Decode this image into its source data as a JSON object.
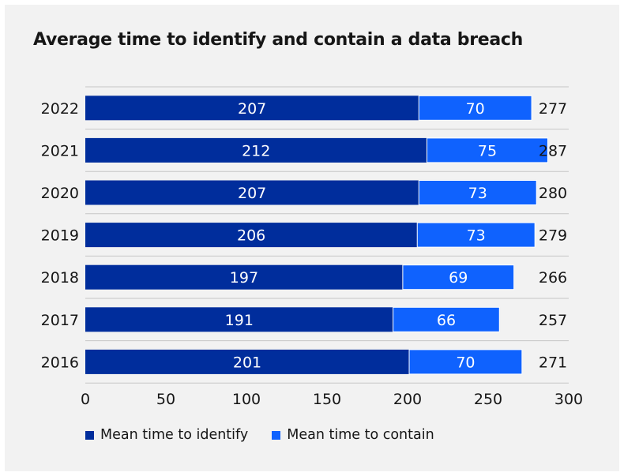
{
  "chart_data": {
    "type": "bar",
    "orientation": "horizontal",
    "stacked": true,
    "title": "Average time to identify and contain a data breach",
    "categories": [
      "2022",
      "2021",
      "2020",
      "2019",
      "2018",
      "2017",
      "2016"
    ],
    "series": [
      {
        "name": "Mean time to identify",
        "values": [
          207,
          212,
          207,
          206,
          197,
          191,
          201
        ],
        "color": "#002d9c"
      },
      {
        "name": "Mean time to contain",
        "values": [
          70,
          75,
          73,
          73,
          69,
          66,
          70
        ],
        "color": "#0f62fe"
      }
    ],
    "totals": [
      277,
      287,
      280,
      279,
      266,
      257,
      271
    ],
    "xlim": [
      0,
      300
    ],
    "xticks": [
      0,
      50,
      100,
      150,
      200,
      250,
      300
    ],
    "grid": "horizontal",
    "legend": "bottom-left",
    "label_color": "#ffffff",
    "grid_color": "#c6c6c6",
    "text_color": "#161616"
  }
}
